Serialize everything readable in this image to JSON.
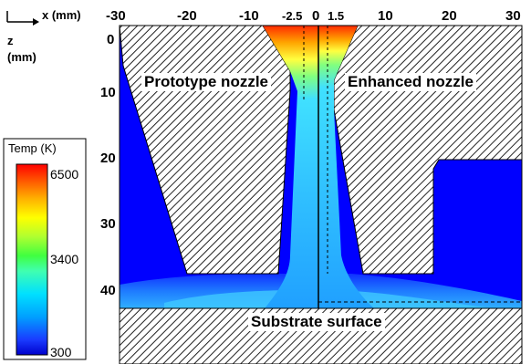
{
  "axes": {
    "x_label": "x (mm)",
    "z_label": "z",
    "z_unit": "(mm)",
    "x_ticks": [
      "-30",
      "-20",
      "-10",
      "-2.5",
      "0",
      "1.5",
      "10",
      "20",
      "30"
    ],
    "z_ticks": [
      "0",
      "10",
      "20",
      "30",
      "40"
    ]
  },
  "labels": {
    "left": "Prototype nozzle",
    "right": "Enhanced nozzle",
    "substrate": "Substrate surface"
  },
  "legend": {
    "title": "Temp (K)",
    "max": "6500",
    "mid": "3400",
    "min": "300"
  },
  "colors": {
    "background_field": "#0000ff",
    "hatch": "#000000",
    "centerline": "#000000"
  }
}
